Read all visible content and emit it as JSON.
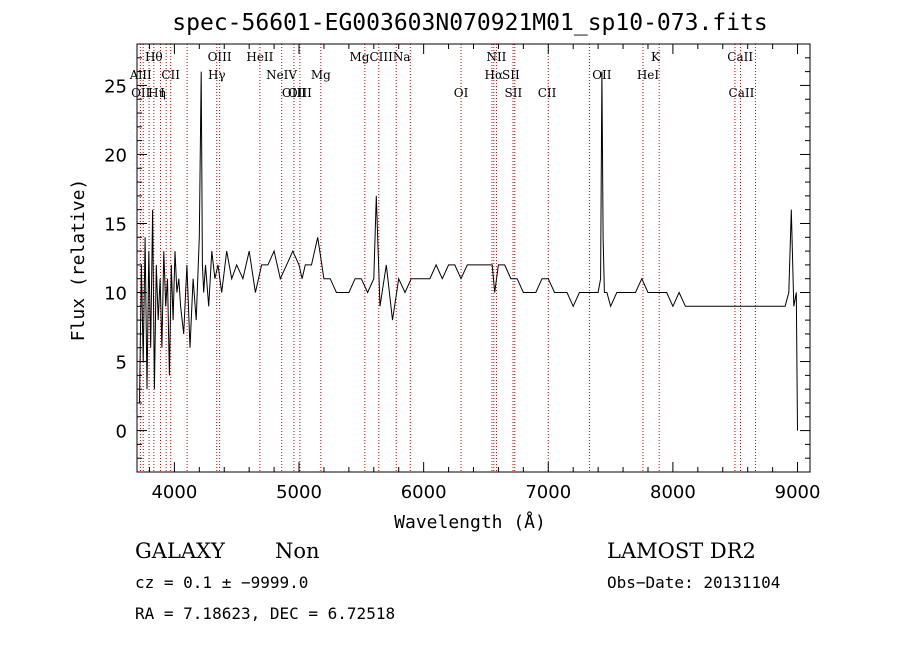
{
  "chart_data": {
    "type": "line",
    "title": "spec-56601-EG003603N070921M01_sp10-073.fits",
    "xlabel": "Wavelength (Å)",
    "ylabel": "Flux (relative)",
    "xlim": [
      3700,
      9100
    ],
    "ylim": [
      -3,
      28
    ],
    "x_ticks": [
      4000,
      5000,
      6000,
      7000,
      8000,
      9000
    ],
    "y_ticks": [
      0,
      5,
      10,
      15,
      20,
      25
    ],
    "grid": false,
    "line_color": "#000000",
    "marker_color": "#cc0000",
    "spectrum": {
      "x": [
        3720,
        3735,
        3750,
        3765,
        3780,
        3795,
        3810,
        3825,
        3840,
        3855,
        3870,
        3885,
        3900,
        3915,
        3930,
        3945,
        3960,
        3975,
        3990,
        4005,
        4020,
        4035,
        4050,
        4075,
        4100,
        4125,
        4150,
        4175,
        4200,
        4215,
        4225,
        4235,
        4250,
        4275,
        4300,
        4325,
        4350,
        4380,
        4420,
        4460,
        4500,
        4550,
        4600,
        4650,
        4700,
        4750,
        4800,
        4850,
        4900,
        4950,
        5000,
        5025,
        5050,
        5100,
        5150,
        5200,
        5250,
        5300,
        5350,
        5400,
        5450,
        5500,
        5550,
        5600,
        5620,
        5650,
        5700,
        5750,
        5800,
        5850,
        5900,
        5950,
        6000,
        6050,
        6100,
        6150,
        6200,
        6250,
        6300,
        6350,
        6400,
        6450,
        6500,
        6550,
        6570,
        6600,
        6650,
        6700,
        6750,
        6800,
        6850,
        6900,
        6950,
        7000,
        7050,
        7100,
        7150,
        7200,
        7250,
        7300,
        7350,
        7400,
        7420,
        7430,
        7440,
        7450,
        7470,
        7500,
        7550,
        7600,
        7650,
        7700,
        7750,
        7800,
        7850,
        7900,
        7950,
        8000,
        8050,
        8100,
        8150,
        8200,
        8250,
        8300,
        8350,
        8400,
        8450,
        8500,
        8550,
        8600,
        8650,
        8700,
        8750,
        8800,
        8850,
        8900,
        8930,
        8950,
        8970,
        8990,
        9000
      ],
      "y": [
        2,
        12,
        5,
        14,
        3,
        13,
        6,
        16,
        3,
        12,
        8,
        11,
        6,
        13,
        9,
        11,
        4,
        12,
        8,
        13,
        10,
        11,
        9,
        7,
        12,
        6,
        11,
        8,
        14,
        26,
        12,
        10,
        12,
        9,
        13,
        11,
        12,
        10,
        13,
        11,
        12,
        11,
        13,
        10,
        12,
        12,
        13,
        11,
        12,
        13,
        12,
        11,
        12,
        12,
        14,
        11,
        11,
        10,
        10,
        10,
        11,
        11,
        10,
        11,
        17,
        9,
        12,
        8,
        11,
        10,
        11,
        11,
        11,
        11,
        12,
        11,
        12,
        12,
        11,
        12,
        12,
        12,
        12,
        12,
        10,
        12,
        12,
        11,
        11,
        10,
        10,
        10,
        11,
        11,
        10,
        10,
        10,
        9,
        10,
        10,
        10,
        10,
        11,
        26,
        14,
        10,
        10,
        9,
        10,
        10,
        10,
        10,
        11,
        10,
        10,
        10,
        10,
        9,
        10,
        9,
        9,
        9,
        9,
        9,
        9,
        9,
        9,
        9,
        9,
        9,
        9,
        9,
        9,
        9,
        9,
        9,
        10,
        16,
        9,
        10,
        0
      ]
    },
    "line_markers": [
      {
        "x": 3730,
        "label": "AlII",
        "row": 1
      },
      {
        "x": 3730,
        "label": "OII",
        "row": 2
      },
      {
        "x": 3835,
        "label": "Hθ",
        "row": 0
      },
      {
        "x": 3860,
        "label": "Hη",
        "row": 2
      },
      {
        "x": 3905,
        "label": "I",
        "row": 2
      },
      {
        "x": 3970,
        "label": "CII",
        "row": 1
      },
      {
        "x": 4340,
        "label": "Hγ",
        "row": 1
      },
      {
        "x": 4363,
        "label": "OIII",
        "row": 0
      },
      {
        "x": 4686,
        "label": "HeII",
        "row": 0
      },
      {
        "x": 4860,
        "label": "NeIV",
        "row": 1
      },
      {
        "x": 4959,
        "label": "OIII",
        "row": 2
      },
      {
        "x": 5007,
        "label": "OIII",
        "row": 2
      },
      {
        "x": 5175,
        "label": "Mg",
        "row": 1
      },
      {
        "x": 5650,
        "label": "MgCIIINa",
        "row": 0
      },
      {
        "x": 6300,
        "label": "OI",
        "row": 2
      },
      {
        "x": 6584,
        "label": "NII",
        "row": 0
      },
      {
        "x": 6563,
        "label": "Hα",
        "row": 1
      },
      {
        "x": 6700,
        "label": "SII",
        "row": 1
      },
      {
        "x": 6720,
        "label": "SII",
        "row": 2
      },
      {
        "x": 6990,
        "label": "CII",
        "row": 2
      },
      {
        "x": 7430,
        "label": "OII",
        "row": 1
      },
      {
        "x": 7800,
        "label": "HeI",
        "row": 1
      },
      {
        "x": 7860,
        "label": "K",
        "row": 0
      },
      {
        "x": 8540,
        "label": "CaII",
        "row": 0
      },
      {
        "x": 8550,
        "label": "CaII",
        "row": 2
      }
    ],
    "marker_positions": [
      3727,
      3750,
      3797,
      3835,
      3889,
      3934,
      3970,
      4102,
      4340,
      4363,
      4686,
      4861,
      4959,
      5007,
      5175,
      5528,
      5640,
      5780,
      5893,
      6300,
      6548,
      6563,
      6584,
      6717,
      6731,
      7000,
      7330,
      7760,
      7890,
      8498,
      8542,
      8662
    ]
  },
  "footer": {
    "object_class": "GALAXY",
    "subclass": "Non",
    "survey": "LAMOST DR2",
    "cz_line": "cz = 0.1 ± −9999.0",
    "obs_date": "Obs−Date: 20131104",
    "coords": "RA =   7.18623, DEC =   6.72518"
  }
}
